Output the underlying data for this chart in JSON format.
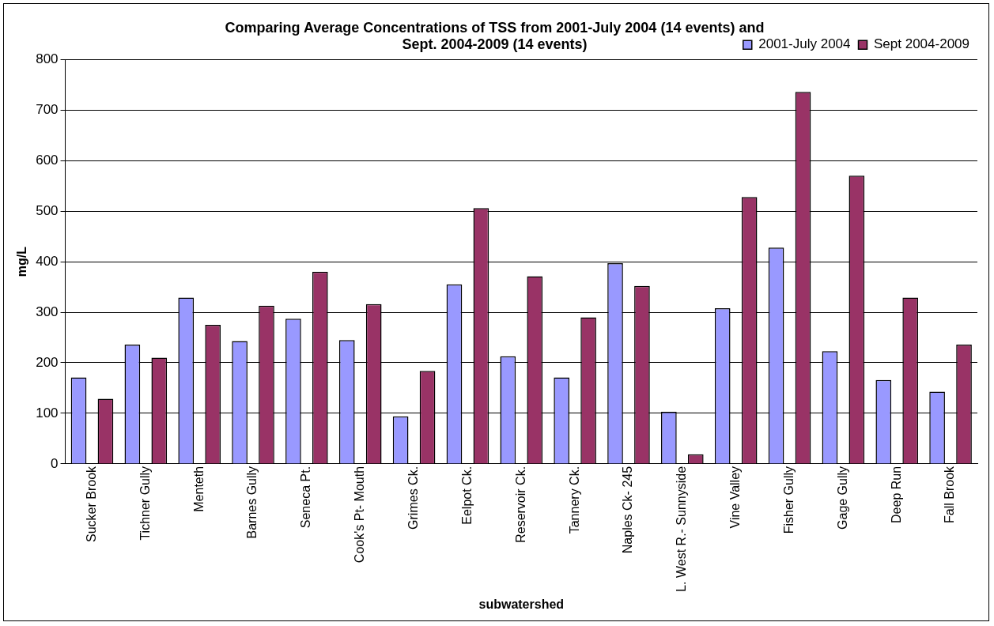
{
  "chart_data": {
    "type": "bar",
    "title": "Comparing Average Concentrations of TSS from 2001-July 2004 (14 events) and Sept. 2004-2009 (14 events)",
    "xlabel": "subwatershed",
    "ylabel": "mg/L",
    "categories": [
      "Sucker Brook",
      "Tichner Gully",
      "Menteth",
      "Barnes Gully",
      "Seneca Pt.",
      "Cook's Pt- Mouth",
      "Grimes Ck.",
      "Eelpot Ck.",
      "Reservoir Ck.",
      "Tannery Ck.",
      "Naples Ck- 245",
      "L. West R.- Sunnyside",
      "Vine Valley",
      "Fisher Gully",
      "Gage Gully",
      "Deep Run",
      "Fall Brook"
    ],
    "series": [
      {
        "name": "2001-July 2004",
        "color": "#9999ff",
        "values": [
          171,
          236,
          329,
          243,
          287,
          245,
          94,
          355,
          213,
          171,
          397,
          103,
          308,
          428,
          223,
          166,
          143
        ]
      },
      {
        "name": "Sept 2004-2009",
        "color": "#993366",
        "values": [
          129,
          210,
          275,
          313,
          380,
          316,
          184,
          506,
          371,
          290,
          352,
          19,
          528,
          736,
          570,
          329,
          236
        ]
      }
    ],
    "ylim": [
      0,
      800
    ],
    "yticks": [
      0,
      100,
      200,
      300,
      400,
      500,
      600,
      700,
      800
    ],
    "grid": "y",
    "legend": "top right"
  }
}
